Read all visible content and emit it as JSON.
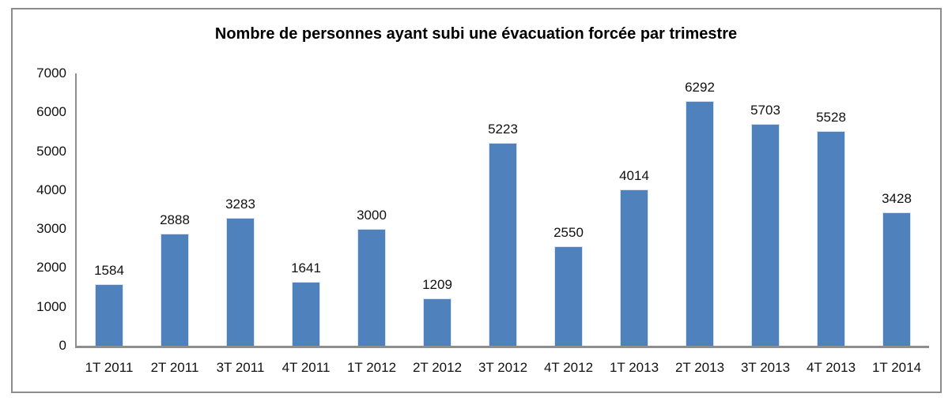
{
  "chart_data": {
    "type": "bar",
    "title": "Nombre de personnes ayant subi une évacuation forcée par trimestre",
    "categories": [
      "1T 2011",
      "2T 2011",
      "3T 2011",
      "4T 2011",
      "1T 2012",
      "2T 2012",
      "3T 2012",
      "4T 2012",
      "1T 2013",
      "2T 2013",
      "3T 2013",
      "4T 2013",
      "1T 2014"
    ],
    "values": [
      1584,
      2888,
      3283,
      1641,
      3000,
      1209,
      5223,
      2550,
      4014,
      6292,
      5703,
      5528,
      3428
    ],
    "data_labels": [
      "1584",
      "2888",
      "3283",
      "1641",
      "3000",
      "1209",
      "5223",
      "2550",
      "4014",
      "6292",
      "5703",
      "5528",
      "3428"
    ],
    "xlabel": "",
    "ylabel": "",
    "ylim": [
      0,
      7000
    ],
    "y_ticks": [
      0,
      1000,
      2000,
      3000,
      4000,
      5000,
      6000,
      7000
    ],
    "grid": false,
    "legend": false,
    "bar_color": "#4F81BD",
    "axis_color": "#8E8E8E",
    "title_color": "#000000",
    "label_color": "#111111"
  }
}
